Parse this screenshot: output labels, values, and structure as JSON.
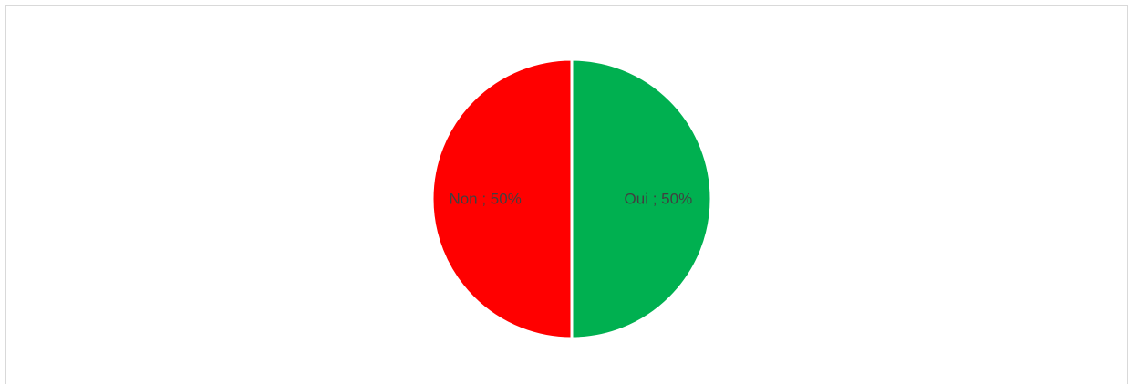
{
  "chart_data": {
    "type": "pie",
    "title": "",
    "slices": [
      {
        "label": "Non",
        "value": 50,
        "percent_label": "50%",
        "color": "#FF0000"
      },
      {
        "label": "Oui",
        "value": 50,
        "percent_label": "50%",
        "color": "#00B050"
      }
    ],
    "data_label_format": "category ; percent",
    "legend": "none",
    "slice_border_color": "#FFFFFF"
  }
}
